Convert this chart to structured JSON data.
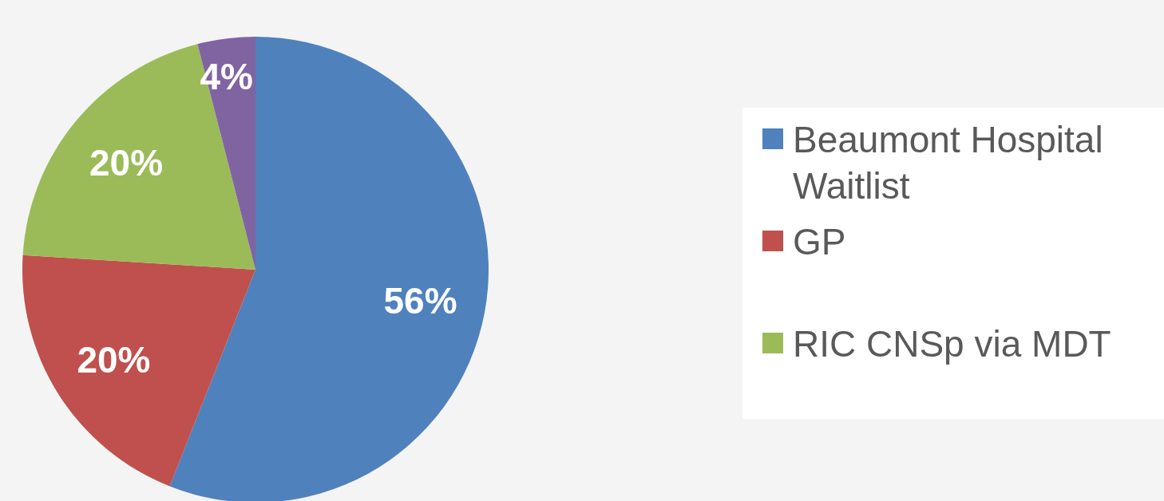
{
  "chart_data": {
    "type": "pie",
    "categories": [
      "Beaumont Hospital Waitlist",
      "GP",
      "RIC CNSp via MDT",
      null
    ],
    "values": [
      56,
      20,
      20,
      4
    ],
    "colors": [
      "#4f81bd",
      "#c0504d",
      "#9bbb59",
      "#8064a2"
    ],
    "value_labels": [
      "56%",
      "20%",
      "20%",
      "4%"
    ],
    "legend": "right"
  }
}
